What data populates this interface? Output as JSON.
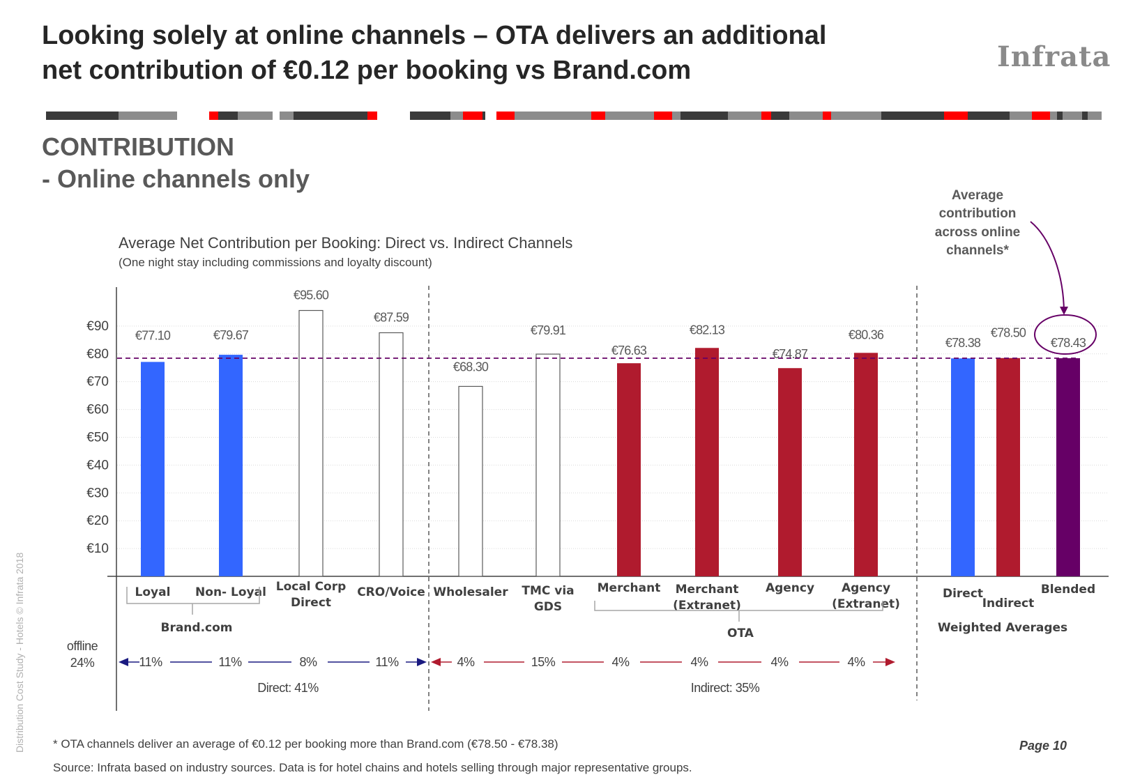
{
  "header": {
    "title_line1": "Looking solely at online channels – OTA delivers an additional",
    "title_line2": "net contribution of  €0.12 per booking vs Brand.com",
    "logo_text": "Infrata"
  },
  "section": {
    "line1": "CONTRIBUTION",
    "line2": "- Online channels only"
  },
  "callout": {
    "lines": [
      "Average",
      "contribution",
      "across online",
      "channels*"
    ]
  },
  "chart_data": {
    "type": "bar",
    "title": "Average Net Contribution per Booking: Direct vs. Indirect Channels",
    "subtitle": "(One night stay including commissions and loyalty discount)",
    "y_ticks": [
      "€10",
      "€20",
      "€30",
      "€40",
      "€50",
      "€60",
      "€70",
      "€80",
      "€90"
    ],
    "y_tick_values": [
      10,
      20,
      30,
      40,
      50,
      60,
      70,
      80,
      90
    ],
    "ylim": [
      0,
      105
    ],
    "average_line_value": 78.43,
    "bars": [
      {
        "category": "Loyal",
        "value": 77.1,
        "label": "€77.10",
        "fill": "#3366ff",
        "outline": false
      },
      {
        "category": "Non- Loyal",
        "value": 79.67,
        "label": "€79.67",
        "fill": "#3366ff",
        "outline": false
      },
      {
        "category": "Local Corp Direct",
        "value": 95.6,
        "label": "€95.60",
        "fill": "#ffffff",
        "outline": true
      },
      {
        "category": "CRO/Voice",
        "value": 87.59,
        "label": "€87.59",
        "fill": "#ffffff",
        "outline": true
      },
      {
        "category": "Wholesaler",
        "value": 68.3,
        "label": "€68.30",
        "fill": "#ffffff",
        "outline": true
      },
      {
        "category": "TMC via GDS",
        "value": 79.91,
        "label": "€79.91",
        "fill": "#ffffff",
        "outline": true
      },
      {
        "category": "Merchant",
        "value": 76.63,
        "label": "€76.63",
        "fill": "#b01b2e",
        "outline": false
      },
      {
        "category": "Merchant (Extranet)",
        "value": 82.13,
        "label": "€82.13",
        "fill": "#b01b2e",
        "outline": false
      },
      {
        "category": "Agency",
        "value": 74.87,
        "label": "€74.87",
        "fill": "#b01b2e",
        "outline": false
      },
      {
        "category": "Agency (Extranet)",
        "value": 80.36,
        "label": "€80.36",
        "fill": "#b01b2e",
        "outline": false
      },
      {
        "category": "Direct",
        "value": 78.38,
        "label": "€78.38",
        "fill": "#3366ff",
        "outline": false
      },
      {
        "category": "Indirect",
        "value": 78.5,
        "label": "€78.50",
        "fill": "#b01b2e",
        "outline": false
      },
      {
        "category": "Blended",
        "value": 78.43,
        "label": "€78.43",
        "fill": "#660066",
        "outline": false
      }
    ],
    "category_labels": [
      [
        "Loyal"
      ],
      [
        "Non- Loyal"
      ],
      [
        "Local Corp",
        "Direct"
      ],
      [
        "CRO/Voice"
      ],
      [
        "Wholesaler"
      ],
      [
        "TMC via",
        "GDS"
      ],
      [
        "Merchant"
      ],
      [
        "Merchant",
        "(Extranet)"
      ],
      [
        "Agency"
      ],
      [
        "Agency",
        "(Extranet)"
      ],
      [
        "Direct"
      ],
      [
        "Indirect"
      ],
      [
        "Blended"
      ]
    ],
    "groups": {
      "brand": "Brand.com",
      "ota": "OTA",
      "weighted": "Weighted Averages"
    },
    "shares": {
      "offline_label": "offline",
      "offline_value": "24%",
      "values": [
        "11%",
        "11%",
        "8%",
        "11%",
        "4%",
        "15%",
        "4%",
        "4%",
        "4%",
        "4%"
      ],
      "direct_total": "Direct: 41%",
      "indirect_total": "Indirect: 35%"
    },
    "colors": {
      "brand_blue": "#3366ff",
      "ota_red": "#b01b2e",
      "blended_purple": "#660066",
      "direct_arrow": "#1a1a80",
      "indirect_arrow": "#b01b2e"
    }
  },
  "footer": {
    "footnote": "* OTA channels deliver an average of €0.12 per booking more than Brand.com (€78.50 - €78.38)",
    "source": "Source: Infrata based on industry sources. Data is for hotel chains and hotels selling through major representative groups.",
    "page": "Page 10",
    "watermark": "Distribution Cost Study  -  Hotels © Infrata 2018"
  }
}
